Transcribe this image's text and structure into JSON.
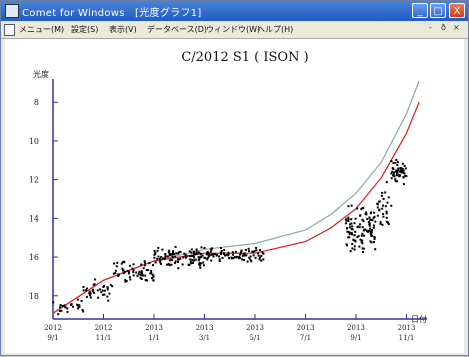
{
  "window": {
    "title": "Comet for Windows　[光度グラフ1]",
    "buttons": {
      "minimize": "_",
      "maximize": "□",
      "close": "X"
    }
  },
  "menubar": {
    "items": [
      "メニュー(M)",
      "設定(S)",
      "表示(V)",
      "データベース(D)",
      "ウィンドウ(W)",
      "ヘルプ(H)"
    ],
    "mdi_buttons": [
      "-",
      "ð",
      "×"
    ]
  },
  "chart_data": {
    "type": "scatter",
    "title": "C/2012 S1 ( ISON )",
    "ylabel": "光度",
    "xlabel": "日付",
    "ylim": [
      19.2,
      6.8
    ],
    "y_inverted": true,
    "y_ticks": [
      8,
      10,
      12,
      14,
      16,
      18
    ],
    "x_tick_labels": [
      {
        "year": "2012",
        "date": "9/1"
      },
      {
        "year": "2012",
        "date": "11/1"
      },
      {
        "year": "2013",
        "date": "1/1"
      },
      {
        "year": "2013",
        "date": "3/1"
      },
      {
        "year": "2013",
        "date": "5/1"
      },
      {
        "year": "2013",
        "date": "7/1"
      },
      {
        "year": "2013",
        "date": "9/1"
      },
      {
        "year": "2013",
        "date": "11/1"
      }
    ],
    "curves": [
      {
        "color": "#8aa8a8",
        "points": [
          [
            0.0,
            18.9
          ],
          [
            1.0,
            17.2
          ],
          [
            2.0,
            16.2
          ],
          [
            3.0,
            15.6
          ],
          [
            4.0,
            15.3
          ],
          [
            5.0,
            14.6
          ],
          [
            5.5,
            13.8
          ],
          [
            6.0,
            12.7
          ],
          [
            6.5,
            11.1
          ],
          [
            7.0,
            8.6
          ],
          [
            7.25,
            6.9
          ]
        ]
      },
      {
        "color": "#e01818",
        "points": [
          [
            0.0,
            18.9
          ],
          [
            1.0,
            17.2
          ],
          [
            2.0,
            16.2
          ],
          [
            3.0,
            15.8
          ],
          [
            4.0,
            15.8
          ],
          [
            5.0,
            15.2
          ],
          [
            5.5,
            14.5
          ],
          [
            6.0,
            13.5
          ],
          [
            6.5,
            11.9
          ],
          [
            7.0,
            9.6
          ],
          [
            7.25,
            8.0
          ]
        ]
      }
    ],
    "observations": [
      {
        "range": [
          0.0,
          0.6
        ],
        "mag": 18.6,
        "spread": 0.6,
        "count": 25
      },
      {
        "range": [
          0.6,
          1.2
        ],
        "mag": 17.7,
        "spread": 0.7,
        "count": 35
      },
      {
        "range": [
          1.2,
          2.0
        ],
        "mag": 16.8,
        "spread": 0.7,
        "count": 70
      },
      {
        "range": [
          2.0,
          3.0
        ],
        "mag": 16.0,
        "spread": 0.6,
        "count": 110
      },
      {
        "range": [
          3.0,
          4.2
        ],
        "mag": 15.9,
        "spread": 0.4,
        "count": 90
      },
      {
        "range": [
          5.8,
          6.4
        ],
        "mag": 14.6,
        "spread": 1.4,
        "count": 110
      },
      {
        "range": [
          6.4,
          6.7
        ],
        "mag": 13.4,
        "spread": 1.5,
        "count": 30
      },
      {
        "range": [
          6.7,
          7.0
        ],
        "mag": 11.6,
        "spread": 0.7,
        "count": 50
      }
    ],
    "colors": {
      "axis": "#3030a0",
      "points": "#000000"
    }
  }
}
